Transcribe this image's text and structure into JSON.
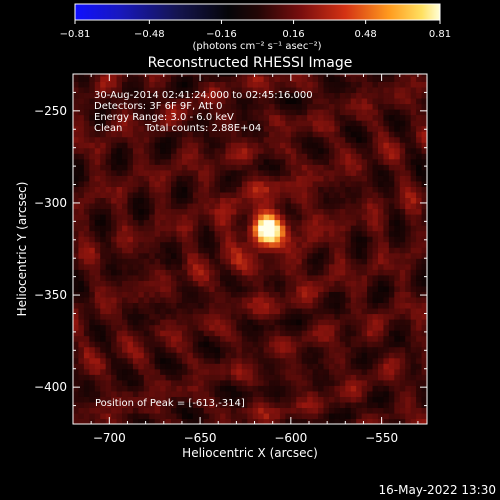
{
  "chart_data": {
    "type": "heatmap",
    "title": "Reconstructed RHESSI Image",
    "xlabel": "Heliocentric X (arcsec)",
    "ylabel": "Heliocentric Y (arcsec)",
    "xlim": [
      -720,
      -525
    ],
    "ylim": [
      -420,
      -230
    ],
    "x_ticks": [
      -700,
      -650,
      -600,
      -550
    ],
    "y_ticks": [
      -250,
      -300,
      -350,
      -400
    ],
    "colorbar": {
      "min": -0.81,
      "max": 0.81,
      "ticks": [
        -0.81,
        -0.48,
        -0.16,
        0.16,
        0.48,
        0.81
      ],
      "tick_labels": [
        "−0.81",
        "−0.48",
        "−0.16",
        "0.16",
        "0.48",
        "0.81"
      ],
      "unit_label": "(photons cm⁻² s⁻¹ asec⁻²)",
      "colormap": "blue-black-red-yellow-white"
    },
    "source": {
      "x": -613,
      "y": -314,
      "peak": 0.81
    },
    "grid": false
  },
  "annotations": {
    "time_range": "30-Aug-2014 02:41:24.000 to 02:45:16.000",
    "detectors": "Detectors: 3F 6F 9F, Att 0",
    "energy": "Energy Range: 3.0 - 6.0 keV",
    "method": "Clean",
    "counts": "Total counts: 2.88E+04",
    "peak_position": "Position of Peak = [-613,-314]"
  },
  "footer": {
    "timestamp": "16-May-2022 13:30"
  },
  "colors": {
    "background": "#000000",
    "text": "#ffffff",
    "axes": "#ffffff"
  }
}
